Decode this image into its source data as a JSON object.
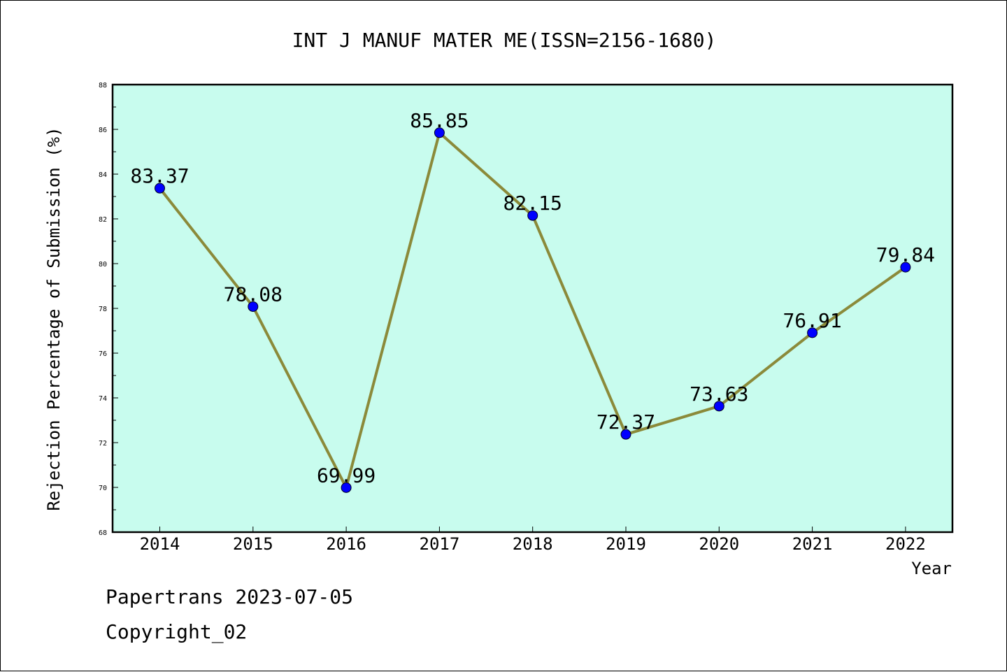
{
  "chart_data": {
    "type": "line",
    "title": "INT J MANUF MATER ME(ISSN=2156-1680)",
    "xlabel": "Year",
    "ylabel": "Rejection Percentage of Submission (%)",
    "categories": [
      "2014",
      "2015",
      "2016",
      "2017",
      "2018",
      "2019",
      "2020",
      "2021",
      "2022"
    ],
    "values": [
      83.37,
      78.08,
      69.99,
      85.85,
      82.15,
      72.37,
      73.63,
      76.91,
      79.84
    ],
    "data_labels": [
      "83.37",
      "78.08",
      "69.99",
      "85.85",
      "82.15",
      "72.37",
      "73.63",
      "76.91",
      "79.84"
    ],
    "ylim": [
      68,
      88
    ],
    "y_ticks": [
      "68",
      "70",
      "72",
      "74",
      "76",
      "78",
      "80",
      "82",
      "84",
      "86",
      "88"
    ],
    "grid": false,
    "colors": {
      "plot_background": "#c8fcee",
      "line": "#8b8a3a",
      "marker": "#0000ff"
    }
  },
  "footer": {
    "line1": "Papertrans 2023-07-05",
    "line2": "Copyright_02"
  }
}
